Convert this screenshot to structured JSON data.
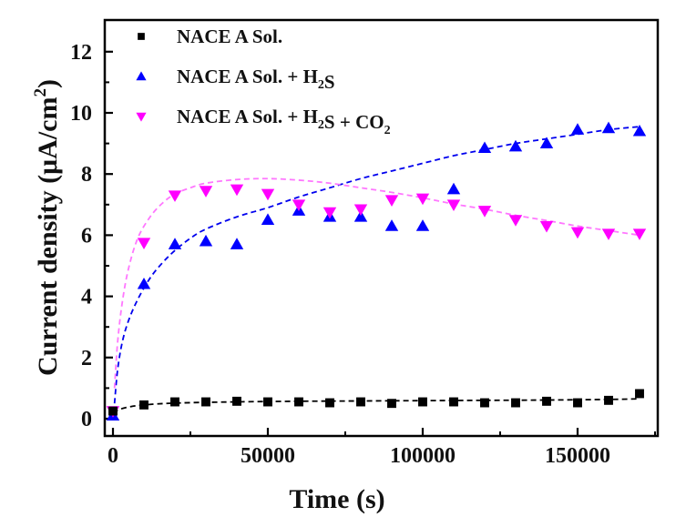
{
  "chart_data": {
    "type": "scatter",
    "title": "",
    "xlabel": "Time (s)",
    "ylabel_parts": {
      "main": "Current density (μA/cm",
      "sup": "2",
      "end": ")"
    },
    "ylabel": "Current density (μA/cm2)",
    "xlim": [
      -3000,
      176000
    ],
    "ylim": [
      -0.55,
      13.0
    ],
    "x_ticks": [
      0,
      50000,
      100000,
      150000
    ],
    "x_tick_labels": [
      "0",
      "50000",
      "100000",
      "150000"
    ],
    "x_minor_ticks": [
      25000,
      75000,
      125000,
      175000
    ],
    "y_ticks": [
      0,
      2,
      4,
      6,
      8,
      10,
      12
    ],
    "y_tick_labels": [
      "0",
      "2",
      "4",
      "6",
      "8",
      "10",
      "12"
    ],
    "y_minor_ticks": [
      1,
      3,
      5,
      7,
      9,
      11
    ],
    "grid": false,
    "legend_position": "top-left",
    "series": [
      {
        "name": "NACE A Sol.",
        "legend_parts": [
          {
            "t": "NACE A Sol."
          }
        ],
        "marker": "square",
        "color": "#000000",
        "fit_color": "#000000",
        "x": [
          0,
          10000,
          20000,
          30000,
          40000,
          50000,
          60000,
          70000,
          80000,
          90000,
          100000,
          110000,
          120000,
          130000,
          140000,
          150000,
          160000,
          170000
        ],
        "y": [
          0.25,
          0.45,
          0.55,
          0.55,
          0.57,
          0.55,
          0.55,
          0.52,
          0.55,
          0.5,
          0.55,
          0.55,
          0.52,
          0.52,
          0.57,
          0.52,
          0.6,
          0.82
        ],
        "fit": {
          "x": [
            0,
            2000,
            5000,
            10000,
            20000,
            40000,
            60000,
            80000,
            100000,
            120000,
            140000,
            160000,
            170000
          ],
          "y": [
            0.2,
            0.3,
            0.38,
            0.45,
            0.51,
            0.55,
            0.57,
            0.58,
            0.59,
            0.6,
            0.61,
            0.63,
            0.65
          ]
        }
      },
      {
        "name": "NACE A Sol. + H2S",
        "legend_parts": [
          {
            "t": "NACE A Sol. + H"
          },
          {
            "sub": "2"
          },
          {
            "t": "S"
          }
        ],
        "marker": "triangle-up",
        "color": "#0000ff",
        "fit_color": "#0000ee",
        "x": [
          0,
          10000,
          20000,
          30000,
          40000,
          50000,
          60000,
          70000,
          80000,
          90000,
          100000,
          110000,
          120000,
          130000,
          140000,
          150000,
          160000,
          170000
        ],
        "y": [
          0.1,
          4.4,
          5.7,
          5.8,
          5.7,
          6.5,
          6.8,
          6.6,
          6.6,
          6.3,
          6.3,
          7.5,
          8.85,
          8.9,
          9.0,
          9.45,
          9.5,
          9.4
        ],
        "fit": {
          "x": [
            500,
            1500,
            3000,
            5000,
            8000,
            12000,
            16000,
            20000,
            25000,
            30000,
            40000,
            50000,
            60000,
            70000,
            80000,
            90000,
            100000,
            110000,
            120000,
            130000,
            140000,
            150000,
            160000,
            170000
          ],
          "y": [
            0.5,
            1.6,
            2.5,
            3.2,
            3.9,
            4.6,
            5.1,
            5.5,
            5.9,
            6.2,
            6.6,
            6.9,
            7.25,
            7.55,
            7.85,
            8.1,
            8.35,
            8.6,
            8.8,
            9.0,
            9.15,
            9.3,
            9.45,
            9.55
          ]
        }
      },
      {
        "name": "NACE A Sol. + H2S + CO2",
        "legend_parts": [
          {
            "t": "NACE A Sol. + H"
          },
          {
            "sub": "2"
          },
          {
            "t": "S + CO"
          },
          {
            "sub": "2"
          }
        ],
        "marker": "triangle-down",
        "color": "#ff00ff",
        "fit_color": "#ff77ff",
        "x": [
          0,
          10000,
          20000,
          30000,
          40000,
          50000,
          60000,
          70000,
          80000,
          90000,
          100000,
          110000,
          120000,
          130000,
          140000,
          150000,
          160000,
          170000
        ],
        "y": [
          0.25,
          5.75,
          7.3,
          7.45,
          7.5,
          7.35,
          7.0,
          6.75,
          6.85,
          7.15,
          7.2,
          7.0,
          6.8,
          6.5,
          6.3,
          6.1,
          6.05,
          6.05
        ],
        "fit": {
          "x": [
            500,
            1500,
            3000,
            5000,
            8000,
            12000,
            16000,
            20000,
            25000,
            30000,
            40000,
            50000,
            60000,
            70000,
            80000,
            90000,
            100000,
            110000,
            120000,
            130000,
            140000,
            150000,
            160000,
            170000
          ],
          "y": [
            1.0,
            2.5,
            3.8,
            4.9,
            5.9,
            6.6,
            7.05,
            7.35,
            7.55,
            7.7,
            7.82,
            7.85,
            7.8,
            7.7,
            7.55,
            7.4,
            7.22,
            7.02,
            6.85,
            6.65,
            6.48,
            6.3,
            6.15,
            6.0
          ]
        }
      }
    ]
  }
}
